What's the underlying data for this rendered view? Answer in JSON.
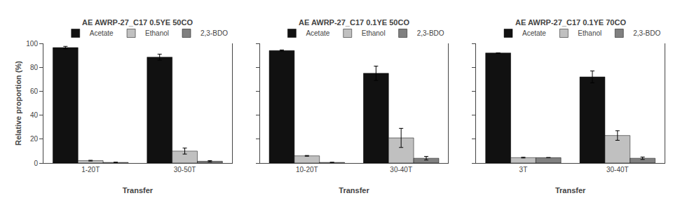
{
  "chart_data": [
    {
      "type": "bar",
      "title": "AE AWRP-27_C17 0.5YE 50CO",
      "xlabel": "Transfer",
      "ylabel": "Relative proportion (%)",
      "categories": [
        "1-20T",
        "30-50T"
      ],
      "series": [
        {
          "name": "Acetate",
          "color": "#111111",
          "values": [
            96.5,
            88.5
          ],
          "errors": [
            1.0,
            2.5
          ]
        },
        {
          "name": "Ethanol",
          "color": "#c0c0c0",
          "values": [
            2.0,
            10.0
          ],
          "errors": [
            0.3,
            2.5
          ]
        },
        {
          "name": "2,3-BDO",
          "color": "#808080",
          "values": [
            0.5,
            1.5
          ],
          "errors": [
            0.2,
            0.5
          ]
        }
      ],
      "ylim": [
        0,
        100
      ],
      "yticks": [
        0,
        20,
        40,
        60,
        80,
        100
      ],
      "grid": false,
      "legend": "upper right"
    },
    {
      "type": "bar",
      "title": "AE AWRP-27_C17 0.1YE 50CO",
      "xlabel": "Transfer",
      "categories": [
        "10-20T",
        "30-40T"
      ],
      "series": [
        {
          "name": "Acetate",
          "color": "#111111",
          "values": [
            94.0,
            75.0
          ],
          "errors": [
            0.5,
            6.0
          ]
        },
        {
          "name": "Ethanol",
          "color": "#c0c0c0",
          "values": [
            6.0,
            21.0
          ],
          "errors": [
            0.3,
            8.0
          ]
        },
        {
          "name": "2,3-BDO",
          "color": "#808080",
          "values": [
            0.5,
            4.0
          ],
          "errors": [
            0.1,
            1.5
          ]
        }
      ],
      "ylim": [
        0,
        100
      ],
      "yticks": [
        0,
        20,
        40,
        60,
        80,
        100
      ],
      "grid": false,
      "legend": "upper right",
      "tick_labels": "x"
    },
    {
      "type": "bar",
      "title": "AE AWRP-27_C17 0.1YE 70CO",
      "xlabel": "Transfer",
      "categories": [
        "3T",
        "30-40T"
      ],
      "series": [
        {
          "name": "Acetate",
          "color": "#111111",
          "values": [
            92.0,
            72.0
          ],
          "errors": [
            0.0,
            5.0
          ]
        },
        {
          "name": "Ethanol",
          "color": "#c0c0c0",
          "values": [
            4.5,
            23.0
          ],
          "errors": [
            0.3,
            4.0
          ]
        },
        {
          "name": "2,3-BDO",
          "color": "#808080",
          "values": [
            4.5,
            4.0
          ],
          "errors": [
            0.1,
            1.0
          ]
        }
      ],
      "ylim": [
        0,
        100
      ],
      "yticks": [
        0,
        20,
        40,
        60,
        80,
        100
      ],
      "grid": false,
      "legend": "upper right",
      "tick_labels": "x"
    }
  ]
}
